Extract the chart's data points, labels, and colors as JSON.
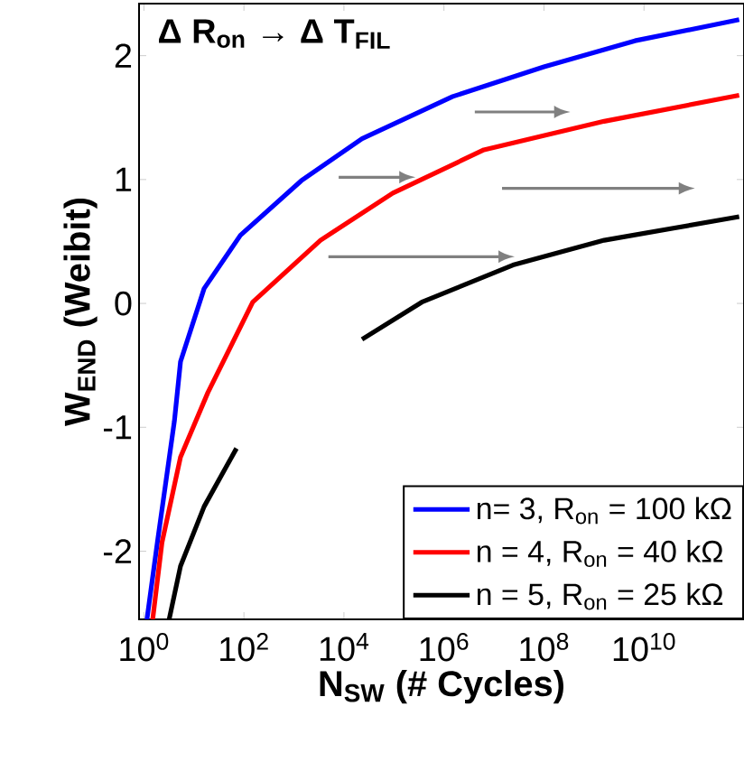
{
  "chart_data": {
    "type": "line",
    "xlabel": "N$_{SW}$ (# Cycles)",
    "ylabel": "W$_{END}$ (Weibit)",
    "annotations": [
      "Δ R$_{on}$ → Δ T$_{FIL}$"
    ],
    "log": "x",
    "xlim": [
      0.8,
      1000000000000.0
    ],
    "ylim": [
      -2.55,
      2.42
    ],
    "xticks": [
      {
        "value": 1,
        "label": "10$^{0}$"
      },
      {
        "value": 100,
        "label": "10$^{2}$"
      },
      {
        "value": 10000,
        "label": "10$^{4}$"
      },
      {
        "value": 1000000,
        "label": "10$^{6}$"
      },
      {
        "value": 100000000,
        "label": "10$^{8}$"
      },
      {
        "value": 10000000000,
        "label": "10$^{10}$"
      }
    ],
    "yticks": [
      -2,
      -1,
      0,
      1,
      2
    ],
    "grid": false,
    "legend": "bottom right",
    "marker": "none",
    "line_style": "solid",
    "series": [
      {
        "name": "n= 3, R$_{on}$ = 100 kΩ",
        "color": "#0000ff",
        "x": [
          1.15,
          1.86,
          4.07,
          5.4,
          16,
          85,
          1400,
          23000,
          1500000,
          100000000,
          6600000000,
          800000000000
        ],
        "values": [
          -2.55,
          -1.93,
          -0.95,
          -0.47,
          0.12,
          0.55,
          0.99,
          1.33,
          1.67,
          1.91,
          2.12,
          2.29
        ]
      },
      {
        "name": "n = 4, R$_{on}$ = 40 kΩ",
        "color": "#ff0000",
        "x": [
          1.5,
          2.3,
          5.4,
          19,
          150,
          3400,
          95000,
          6300000,
          1600000000,
          800000000000
        ],
        "values": [
          -2.55,
          -1.93,
          -1.24,
          -0.72,
          0.01,
          0.51,
          0.89,
          1.24,
          1.47,
          1.68
        ]
      },
      {
        "name": "n = 5, R$_{on}$ = 25 kΩ",
        "color": "#000000",
        "x": [
          3.2,
          5.4,
          16,
          71,
          1000,
          23000,
          360000,
          24000000,
          1600000000,
          800000000000
        ],
        "values": [
          -2.55,
          -2.12,
          -1.64,
          -1.17,
          null,
          -0.29,
          0.01,
          0.31,
          0.51,
          0.7
        ]
      }
    ]
  }
}
